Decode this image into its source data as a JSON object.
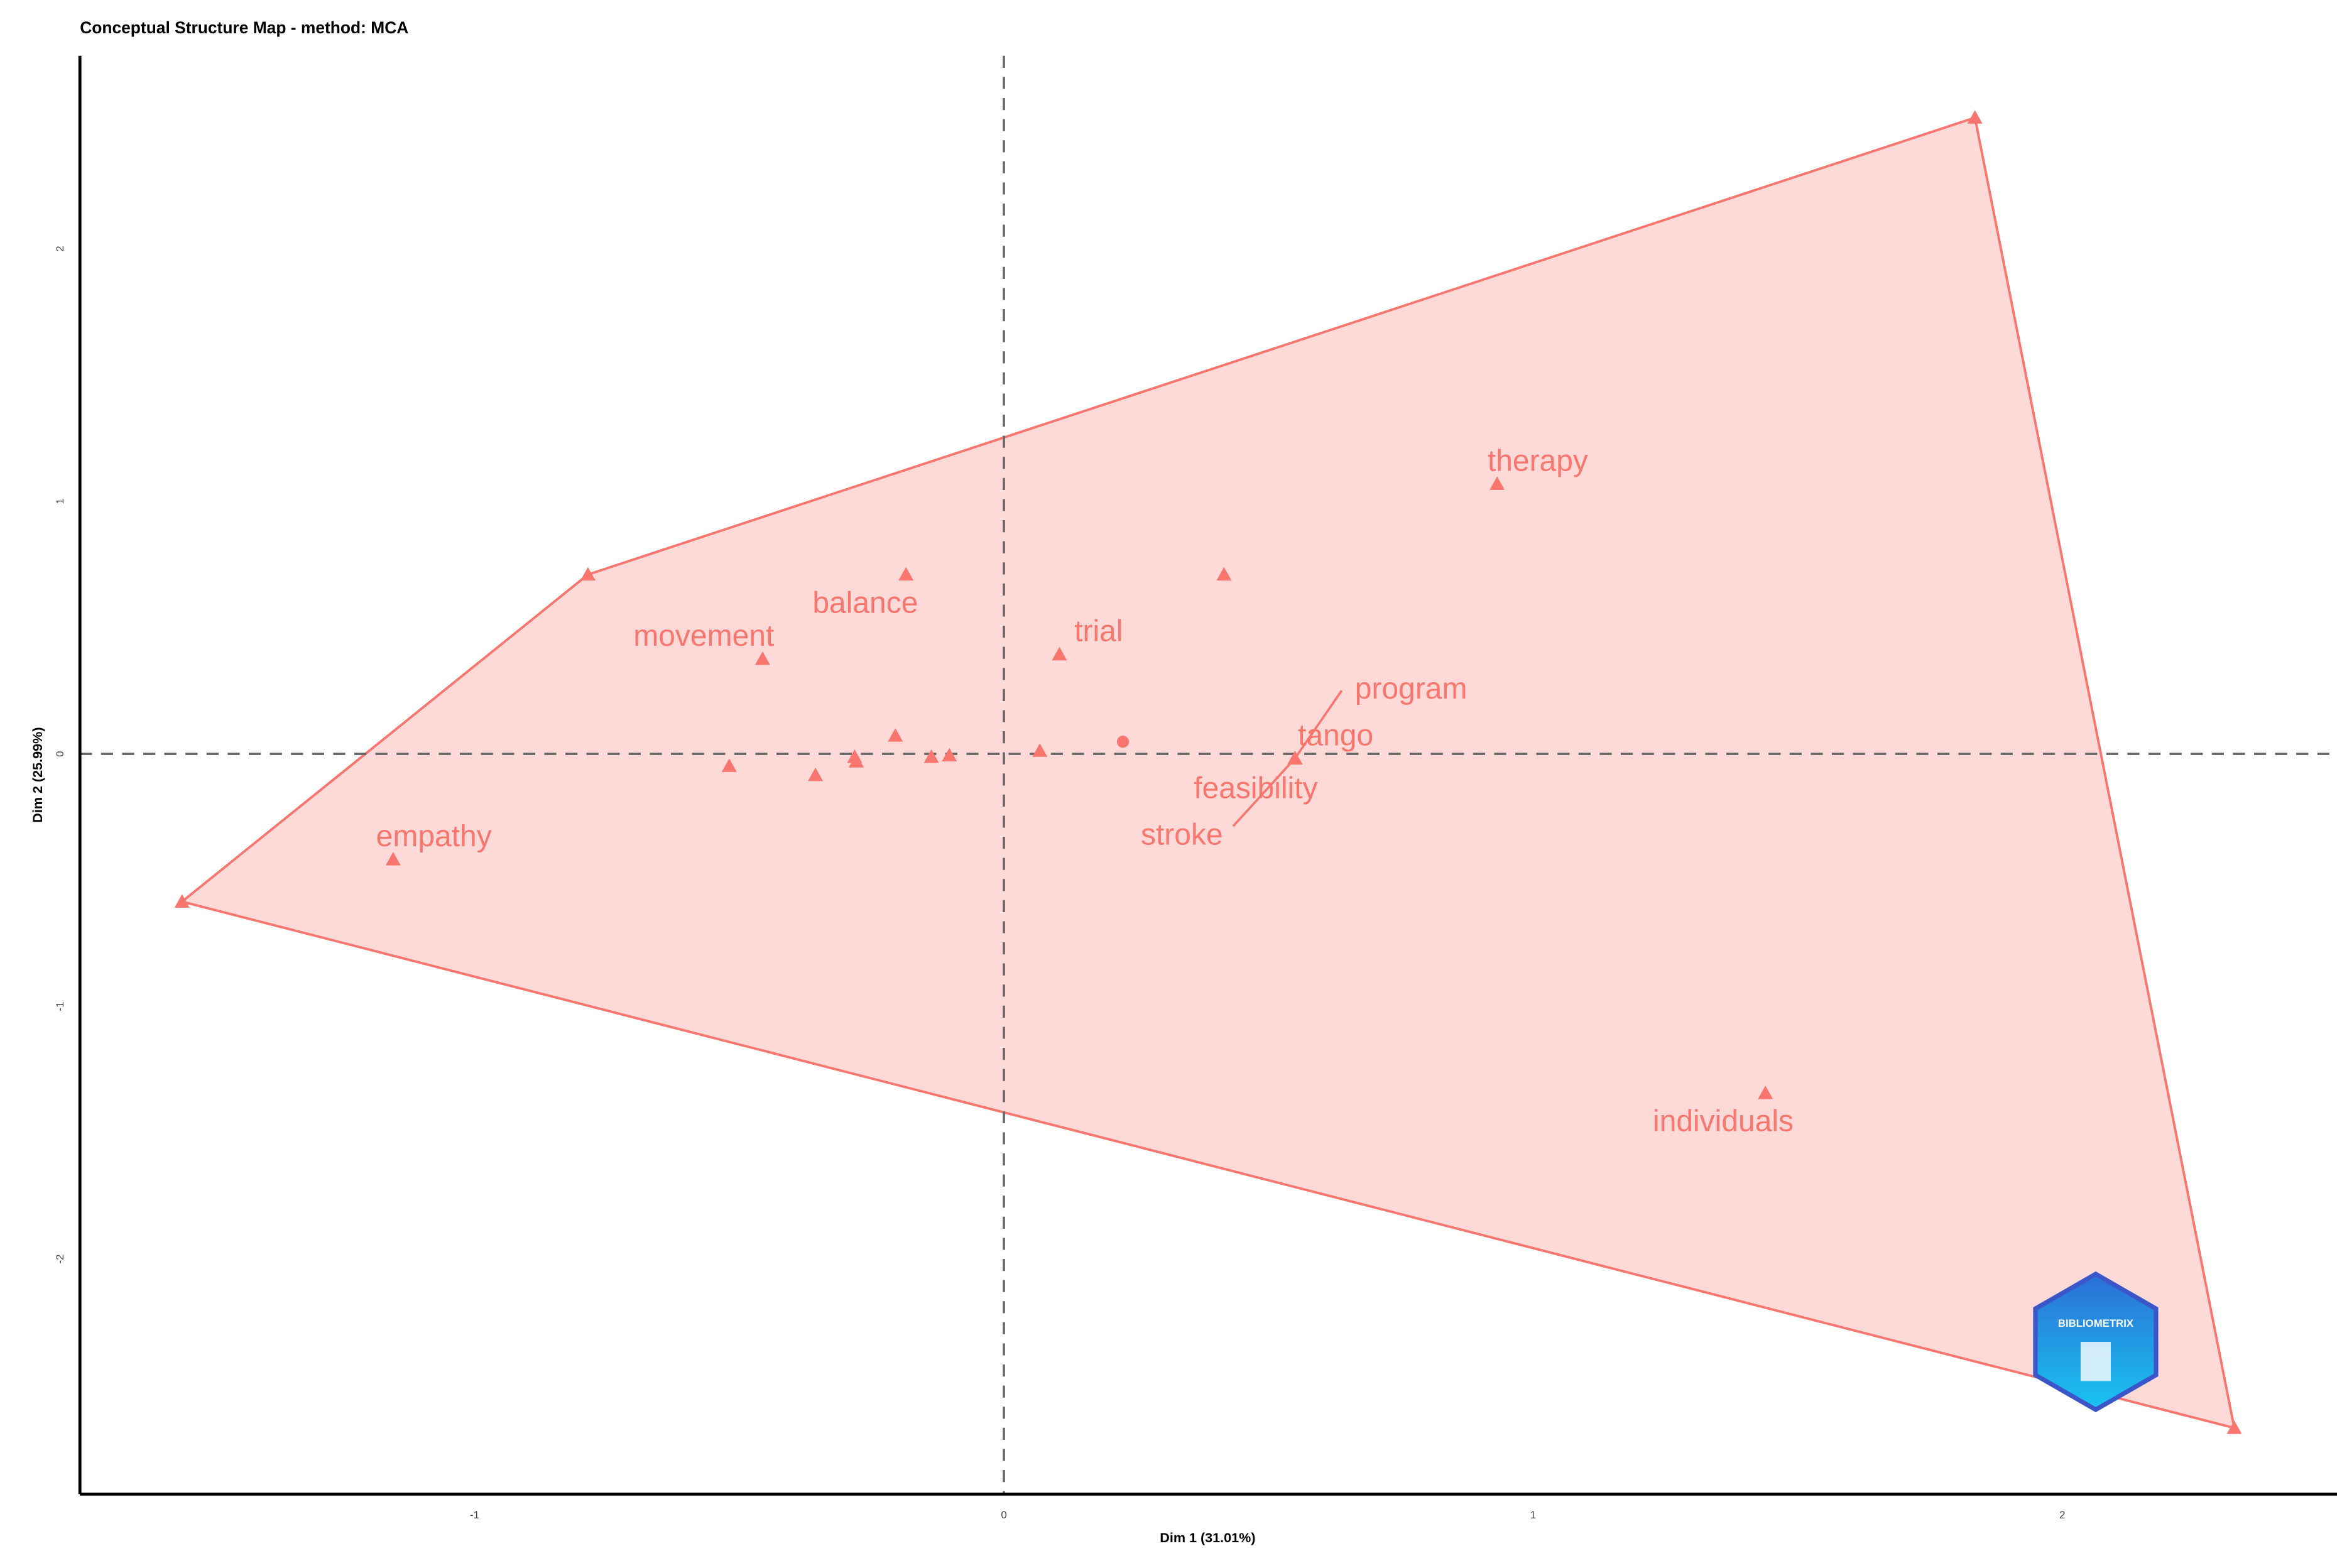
{
  "chart_data": {
    "type": "scatter",
    "title": "Conceptual Structure Map - method: MCA",
    "x_label": "Dim 1 (31.01%)",
    "y_label": "Dim 2 (25.99%)",
    "x": [
      -1.154,
      -0.456,
      -0.185,
      0.105,
      0.932,
      1.439,
      0.55,
      0.55,
      0.55,
      0.55,
      -0.786,
      1.835,
      2.325,
      -1.553,
      0.416,
      -0.519,
      -0.356,
      -0.282,
      -0.279,
      -0.205,
      -0.137,
      -0.103,
      0.068
    ],
    "y": [
      -0.418,
      0.376,
      0.71,
      0.394,
      1.069,
      -1.343,
      -0.018,
      -0.018,
      -0.018,
      -0.018,
      0.71,
      2.519,
      -2.669,
      -0.585,
      0.71,
      -0.048,
      -0.084,
      -0.012,
      -0.03,
      0.072,
      -0.012,
      -0.006,
      0.012
    ],
    "labels": [
      "empathy",
      "movement",
      "balance",
      "trial",
      "therapy",
      "individuals",
      "program",
      "tango",
      "feasibility",
      "stroke",
      null,
      null,
      null,
      null,
      null,
      null,
      null,
      null,
      null,
      null,
      null,
      null,
      null
    ],
    "centroid": {
      "x": 0.225,
      "y": 0.048
    },
    "color": "#f8766d",
    "xlim": [
      -1.746,
      2.519
    ],
    "ylim": [
      -2.931,
      2.764
    ],
    "xticks": [
      -1,
      0,
      1,
      2
    ],
    "yticks": [
      -2,
      -1,
      0,
      1,
      2
    ],
    "logo_text": "BIBLIOMETRIX"
  }
}
